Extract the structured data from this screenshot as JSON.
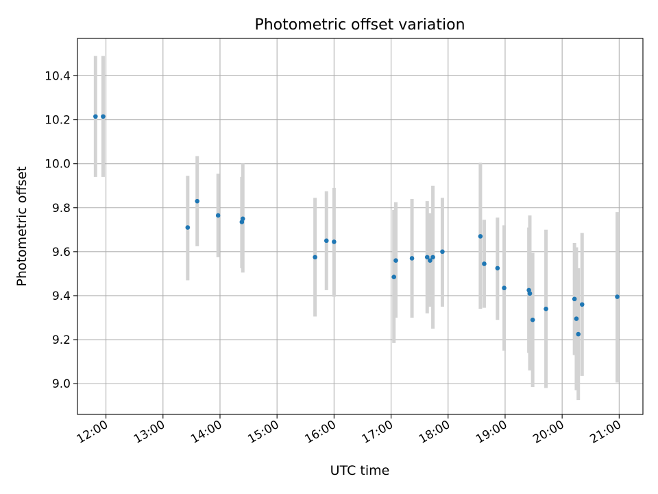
{
  "chart_data": {
    "type": "scatter",
    "title": "Photometric offset variation",
    "xlabel": "UTC time",
    "ylabel": "Photometric offset",
    "grid": true,
    "x_range": [
      "11:30",
      "21:25"
    ],
    "ylim": [
      8.86,
      10.57
    ],
    "x_ticks": [
      "12:00",
      "13:00",
      "14:00",
      "15:00",
      "16:00",
      "17:00",
      "18:00",
      "19:00",
      "20:00",
      "21:00"
    ],
    "y_ticks": [
      9.0,
      9.2,
      9.4,
      9.6,
      9.8,
      10.0,
      10.2,
      10.4
    ],
    "y_tick_labels": [
      "9.0",
      "9.2",
      "9.4",
      "9.6",
      "9.8",
      "10.0",
      "10.2",
      "10.4"
    ],
    "colors": {
      "marker": "#1f77b4",
      "errorbar": "#d3d3d3",
      "grid": "#b0b0b0"
    },
    "points": [
      {
        "x": "11:49",
        "y": 10.215,
        "lo": 9.94,
        "hi": 10.49
      },
      {
        "x": "11:57",
        "y": 10.215,
        "lo": 9.94,
        "hi": 10.49
      },
      {
        "x": "13:26",
        "y": 9.71,
        "lo": 9.47,
        "hi": 9.945
      },
      {
        "x": "13:36",
        "y": 9.83,
        "lo": 9.625,
        "hi": 10.035
      },
      {
        "x": "13:58",
        "y": 9.765,
        "lo": 9.575,
        "hi": 9.955
      },
      {
        "x": "14:23",
        "y": 9.735,
        "lo": 9.525,
        "hi": 9.94
      },
      {
        "x": "14:24",
        "y": 9.75,
        "lo": 9.505,
        "hi": 10.0
      },
      {
        "x": "15:40",
        "y": 9.575,
        "lo": 9.305,
        "hi": 9.845
      },
      {
        "x": "15:52",
        "y": 9.65,
        "lo": 9.425,
        "hi": 9.875
      },
      {
        "x": "16:00",
        "y": 9.645,
        "lo": 9.395,
        "hi": 9.89
      },
      {
        "x": "17:03",
        "y": 9.485,
        "lo": 9.185,
        "hi": 9.79
      },
      {
        "x": "17:05",
        "y": 9.56,
        "lo": 9.3,
        "hi": 9.825
      },
      {
        "x": "17:22",
        "y": 9.57,
        "lo": 9.3,
        "hi": 9.84
      },
      {
        "x": "17:38",
        "y": 9.575,
        "lo": 9.32,
        "hi": 9.83
      },
      {
        "x": "17:41",
        "y": 9.56,
        "lo": 9.35,
        "hi": 9.775
      },
      {
        "x": "17:44",
        "y": 9.575,
        "lo": 9.25,
        "hi": 9.9
      },
      {
        "x": "17:54",
        "y": 9.6,
        "lo": 9.35,
        "hi": 9.845
      },
      {
        "x": "18:34",
        "y": 9.67,
        "lo": 9.34,
        "hi": 10.005
      },
      {
        "x": "18:38",
        "y": 9.545,
        "lo": 9.345,
        "hi": 9.745
      },
      {
        "x": "18:52",
        "y": 9.525,
        "lo": 9.29,
        "hi": 9.755
      },
      {
        "x": "18:59",
        "y": 9.435,
        "lo": 9.15,
        "hi": 9.72
      },
      {
        "x": "19:25",
        "y": 9.425,
        "lo": 9.14,
        "hi": 9.71
      },
      {
        "x": "19:26",
        "y": 9.41,
        "lo": 9.06,
        "hi": 9.765
      },
      {
        "x": "19:29",
        "y": 9.29,
        "lo": 8.985,
        "hi": 9.595
      },
      {
        "x": "19:43",
        "y": 9.34,
        "lo": 8.98,
        "hi": 9.7
      },
      {
        "x": "20:13",
        "y": 9.385,
        "lo": 9.13,
        "hi": 9.64
      },
      {
        "x": "20:15",
        "y": 9.295,
        "lo": 8.97,
        "hi": 9.62
      },
      {
        "x": "20:17",
        "y": 9.225,
        "lo": 8.925,
        "hi": 9.525
      },
      {
        "x": "20:21",
        "y": 9.36,
        "lo": 9.035,
        "hi": 9.685
      },
      {
        "x": "20:58",
        "y": 9.395,
        "lo": 9.005,
        "hi": 9.78
      }
    ]
  }
}
